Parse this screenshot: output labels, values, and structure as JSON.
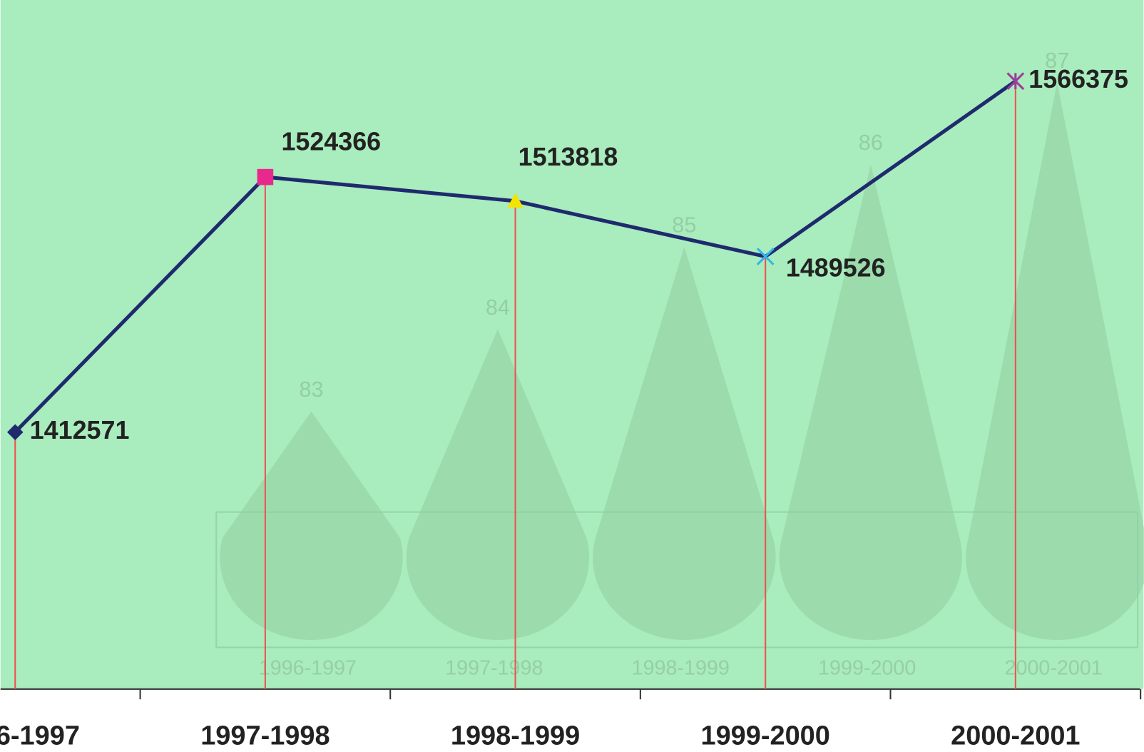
{
  "chart_data": [
    {
      "type": "line",
      "categories": [
        "1996-1997",
        "1997-1998",
        "1998-1999",
        "1999-2000",
        "2000-2001"
      ],
      "values": [
        1412571,
        1524366,
        1513818,
        1489526,
        1566375
      ],
      "color": "#1f2a6e",
      "marker_colors": [
        "#1f2a6e",
        "#e8288c",
        "#f5e400",
        "#33b5e8",
        "#9b3d9b"
      ],
      "drop_line_color": "#f05050",
      "ylim": [
        1300000,
        1600000
      ]
    },
    {
      "type": "cone",
      "categories": [
        "1996-1997",
        "1997-1998",
        "1998-1999",
        "1999-2000",
        "2000-2001"
      ],
      "values": [
        83,
        84,
        85,
        86,
        87
      ],
      "color": "#8fce9f",
      "ylim": [
        80,
        88
      ]
    }
  ]
}
